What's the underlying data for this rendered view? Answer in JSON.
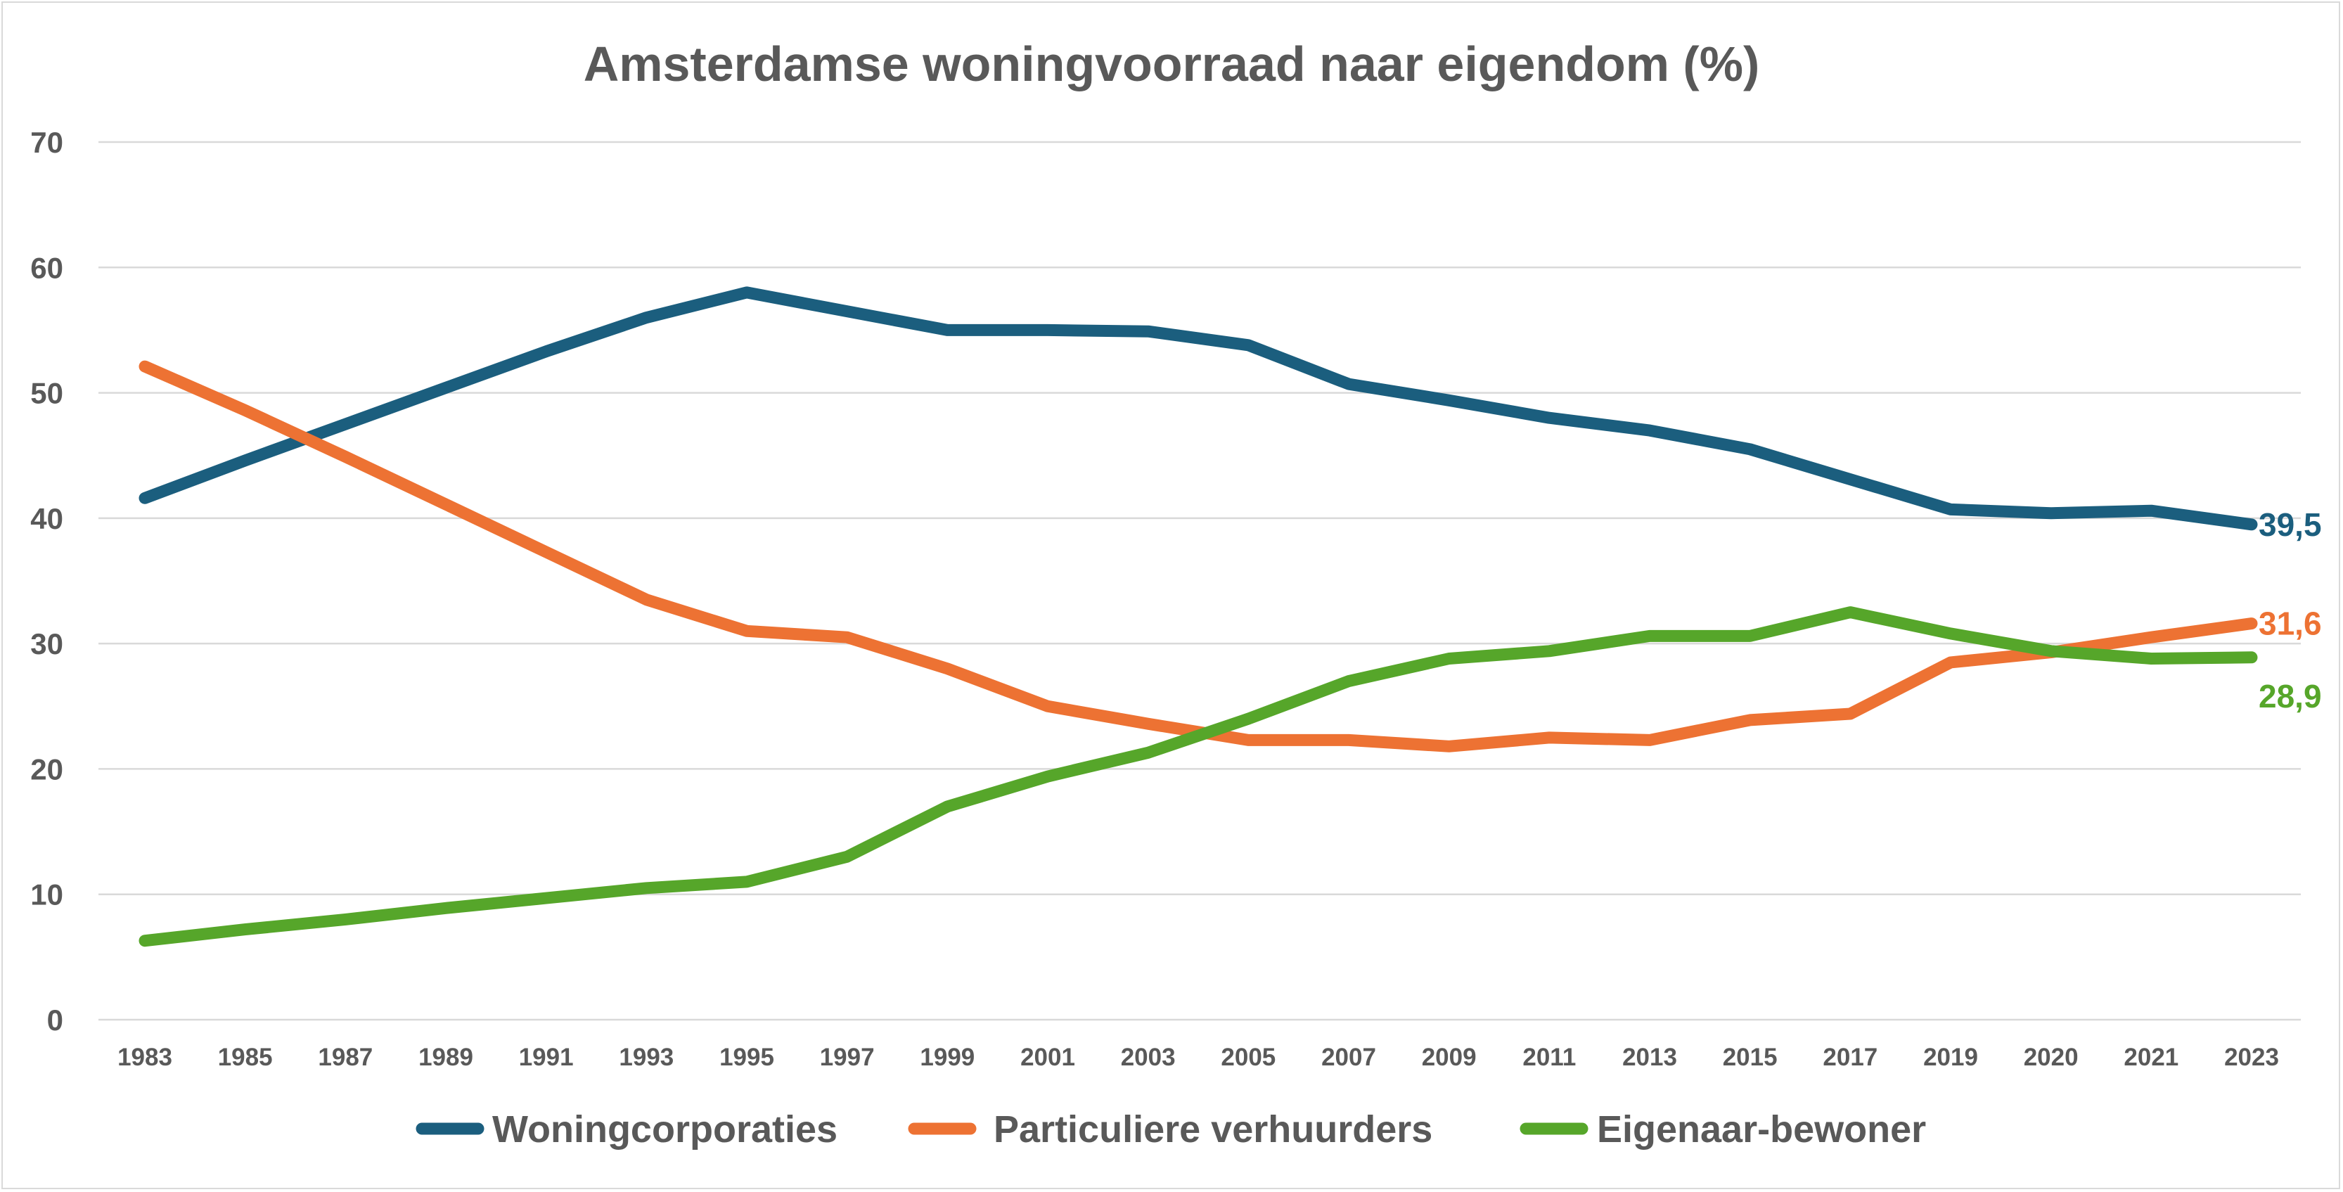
{
  "chart_data": {
    "type": "line",
    "title": "Amsterdamse woningvoorraad naar eigendom (%)",
    "xlabel": "",
    "ylabel": "",
    "ylim": [
      0,
      70
    ],
    "yticks": [
      "0",
      "10",
      "20",
      "30",
      "40",
      "50",
      "60",
      "70"
    ],
    "categories": [
      "1983",
      "1985",
      "1987",
      "1989",
      "1991",
      "1993",
      "1995",
      "1997",
      "1999",
      "2001",
      "2003",
      "2005",
      "2007",
      "2009",
      "2011",
      "2013",
      "2015",
      "2017",
      "2019",
      "2020",
      "2021",
      "2023"
    ],
    "grid": "horizontal",
    "legend_position": "bottom",
    "series": [
      {
        "name": "Woningcorporaties",
        "color": "#1b5e7e",
        "values": [
          41.6,
          44.6,
          47.5,
          50.4,
          53.3,
          56.0,
          58.0,
          56.5,
          55.0,
          55.0,
          54.9,
          53.8,
          50.7,
          49.4,
          48.0,
          47.0,
          45.5,
          43.1,
          40.7,
          40.4,
          40.6,
          39.5
        ],
        "end_label": "39,5"
      },
      {
        "name": "Particuliere verhuurders",
        "color": "#ed7233",
        "values": [
          52.1,
          48.6,
          44.9,
          41.1,
          37.3,
          33.5,
          31.0,
          30.5,
          28.0,
          25.0,
          23.6,
          22.3,
          22.3,
          21.8,
          22.5,
          22.3,
          23.9,
          24.4,
          28.5,
          29.3,
          30.5,
          31.6
        ],
        "end_label": "31,6"
      },
      {
        "name": "Eigenaar-bewoner",
        "color": "#56a62a",
        "values": [
          6.3,
          7.2,
          8.0,
          8.9,
          9.7,
          10.5,
          11.0,
          13.0,
          17.0,
          19.4,
          21.3,
          24.0,
          27.0,
          28.8,
          29.4,
          30.6,
          30.6,
          32.5,
          30.8,
          29.4,
          28.8,
          28.9
        ],
        "end_label": "28,9"
      }
    ]
  }
}
